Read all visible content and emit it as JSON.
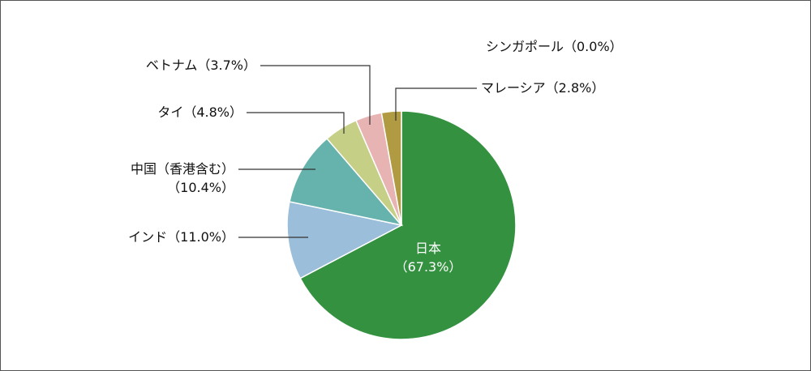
{
  "chart_data": {
    "type": "pie",
    "title": "",
    "start": "12 o'clock",
    "direction": "clockwise",
    "slices": [
      {
        "label": "日本",
        "value_text": "（67.3%）",
        "value": 67.3,
        "color": "#339140"
      },
      {
        "label": "インド（11.0%）",
        "value": 11.0,
        "color": "#9bbfda"
      },
      {
        "label": "中国（香港含む）",
        "value_text": "（10.4%）",
        "value": 10.4,
        "color": "#66b2ac"
      },
      {
        "label": "タイ（4.8%）",
        "value": 4.8,
        "color": "#c6cf86"
      },
      {
        "label": "ベトナム（3.7%）",
        "value": 3.7,
        "color": "#e7b3b3"
      },
      {
        "label": "シンガポール（0.0%）",
        "value": 0.0,
        "color": "#bdbdbd"
      },
      {
        "label": "マレーシア（2.8%）",
        "value": 2.8,
        "color": "#b09a42"
      }
    ]
  }
}
